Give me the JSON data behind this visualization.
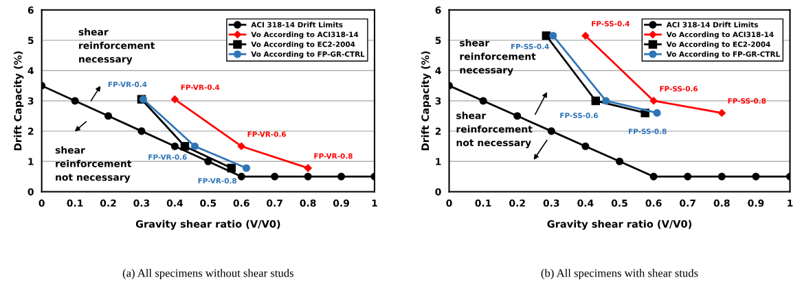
{
  "chart_data": [
    {
      "type": "line",
      "title": "(a) All specimens without shear studs",
      "xlabel": "Gravity shear ratio (V/V0)",
      "ylabel": "Drift Capacity (%)",
      "xlim": [
        0,
        1
      ],
      "xticks": [
        0,
        0.1,
        0.2,
        0.3,
        0.4,
        0.5,
        0.6,
        0.7,
        0.8,
        0.9,
        1
      ],
      "ylim": [
        0,
        6
      ],
      "yticks": [
        0,
        1,
        2,
        3,
        4,
        5,
        6
      ],
      "grid": "y",
      "legend": "top right",
      "line_style": "solid",
      "annotations": [
        "shear\nreinforcement\nnecessary",
        "shear\nreinforcement\nnot necessary"
      ],
      "series": [
        {
          "name": "ACI 318-14 Drift Limits",
          "color": "#000000",
          "marker": "circle",
          "x": [
            0,
            0.1,
            0.2,
            0.3,
            0.4,
            0.5,
            0.6,
            0.7,
            0.8,
            0.9,
            1
          ],
          "values": [
            3.5,
            3,
            2.5,
            2,
            1.5,
            1,
            0.5,
            0.5,
            0.5,
            0.5,
            0.5
          ]
        },
        {
          "name": "Vo According to ACI318-14",
          "color": "#ff0000",
          "marker": "diamond",
          "x": [
            0.4,
            0.6,
            0.8
          ],
          "values": [
            3.05,
            1.5,
            0.78
          ],
          "value_labels": [
            "FP-VR-0.4",
            "FP-VR-0.6",
            "FP-VR-0.8"
          ]
        },
        {
          "name": "Vo According to EC2-2004",
          "color": "#000000",
          "marker": "square",
          "x": [
            0.3,
            0.43,
            0.57
          ],
          "values": [
            3.05,
            1.5,
            0.78
          ]
        },
        {
          "name": "Vo According to FP-GR-CTRL",
          "color": "#2e75b6",
          "marker": "circle",
          "x": [
            0.305,
            0.46,
            0.615
          ],
          "values": [
            3.05,
            1.5,
            0.78
          ],
          "value_labels": [
            "FP-VR-0.4",
            "FP-VR-0.6",
            "FP-VR-0.8"
          ]
        }
      ]
    },
    {
      "type": "line",
      "title": "(b) All specimens with shear studs",
      "xlabel": "Gravity shear ratio (V/V0)",
      "ylabel": "Drift Capacity (%)",
      "xlim": [
        0,
        1
      ],
      "xticks": [
        0,
        0.1,
        0.2,
        0.3,
        0.4,
        0.5,
        0.6,
        0.7,
        0.8,
        0.9,
        1
      ],
      "ylim": [
        0,
        6
      ],
      "yticks": [
        0,
        1,
        2,
        3,
        4,
        5,
        6
      ],
      "grid": "y",
      "legend": "top right",
      "line_style": "solid",
      "annotations": [
        "shear\nreinforcement\nnecessary",
        "shear\nreinforcement\nnot necessary"
      ],
      "series": [
        {
          "name": "ACI 318-14 Drift Limits",
          "color": "#000000",
          "marker": "circle",
          "x": [
            0,
            0.1,
            0.2,
            0.3,
            0.4,
            0.5,
            0.6,
            0.7,
            0.8,
            0.9,
            1
          ],
          "values": [
            3.5,
            3,
            2.5,
            2,
            1.5,
            1,
            0.5,
            0.5,
            0.5,
            0.5,
            0.5
          ]
        },
        {
          "name": "Vo According to ACI318-14",
          "color": "#ff0000",
          "marker": "diamond",
          "x": [
            0.4,
            0.6,
            0.8
          ],
          "values": [
            5.15,
            3.0,
            2.6
          ],
          "value_labels": [
            "FP-SS-0.4",
            "FP-SS-0.6",
            "FP-SS-0.8"
          ]
        },
        {
          "name": "Vo According to EC2-2004",
          "color": "#000000",
          "marker": "square",
          "x": [
            0.285,
            0.43,
            0.575
          ],
          "values": [
            5.15,
            3.0,
            2.6
          ]
        },
        {
          "name": "Vo According to FP-GR-CTRL",
          "color": "#2e75b6",
          "marker": "circle",
          "x": [
            0.305,
            0.46,
            0.61
          ],
          "values": [
            5.15,
            3.0,
            2.6
          ],
          "value_labels": [
            "FP-SS-0.4",
            "FP-SS-0.6",
            "FP-SS-0.8"
          ]
        }
      ]
    }
  ]
}
